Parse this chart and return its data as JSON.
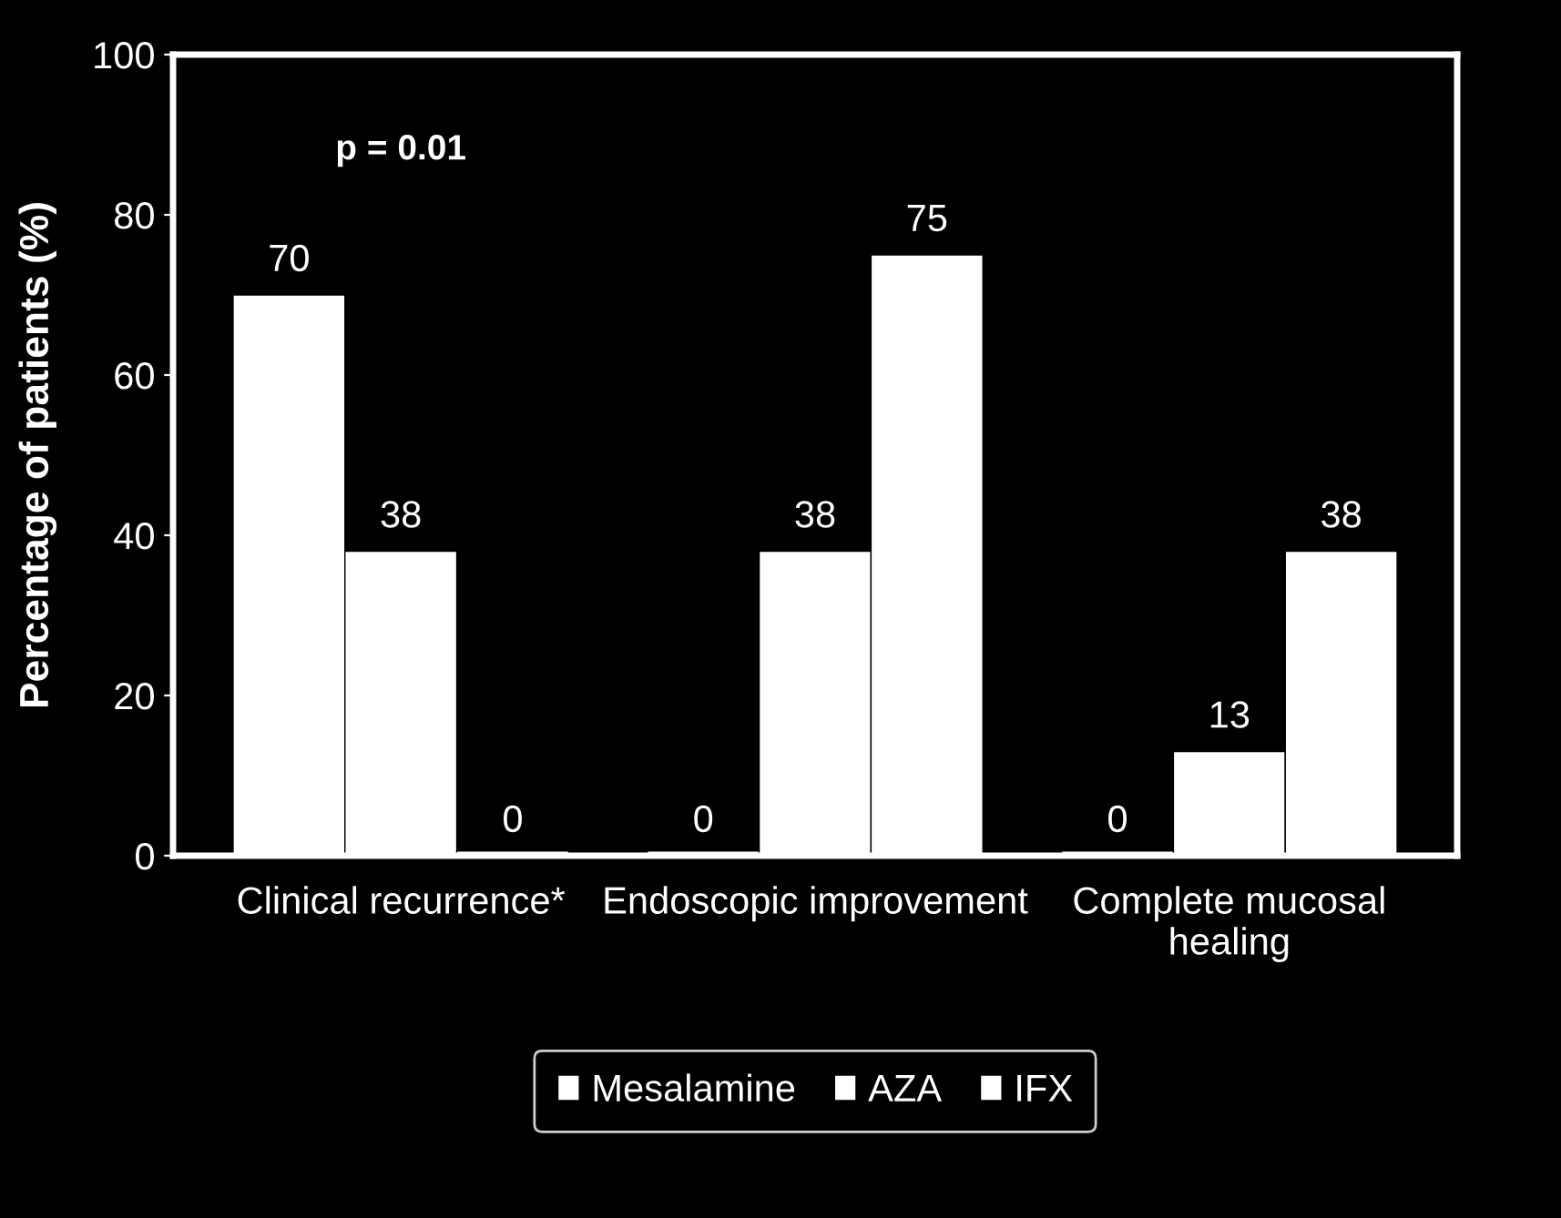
{
  "chart_data": {
    "type": "bar",
    "ylabel": "Percentage of patients (%)",
    "categories": [
      "Clinical recurrence*",
      "Endoscopic improvement",
      "Complete mucosal\nhealing"
    ],
    "series": [
      {
        "name": "Mesalamine",
        "color": "#ffffff",
        "values": [
          70,
          0,
          0
        ]
      },
      {
        "name": "AZA",
        "color": "#ffffff",
        "values": [
          38,
          38,
          13
        ]
      },
      {
        "name": "IFX",
        "color": "#ffffff",
        "values": [
          0,
          75,
          38
        ]
      }
    ],
    "ylim": [
      0,
      100
    ],
    "yticks": [
      0,
      20,
      40,
      60,
      80,
      100
    ],
    "grid": false,
    "legend": "bottom",
    "data_labels": true,
    "annotations": [
      "p = 0.01"
    ]
  }
}
